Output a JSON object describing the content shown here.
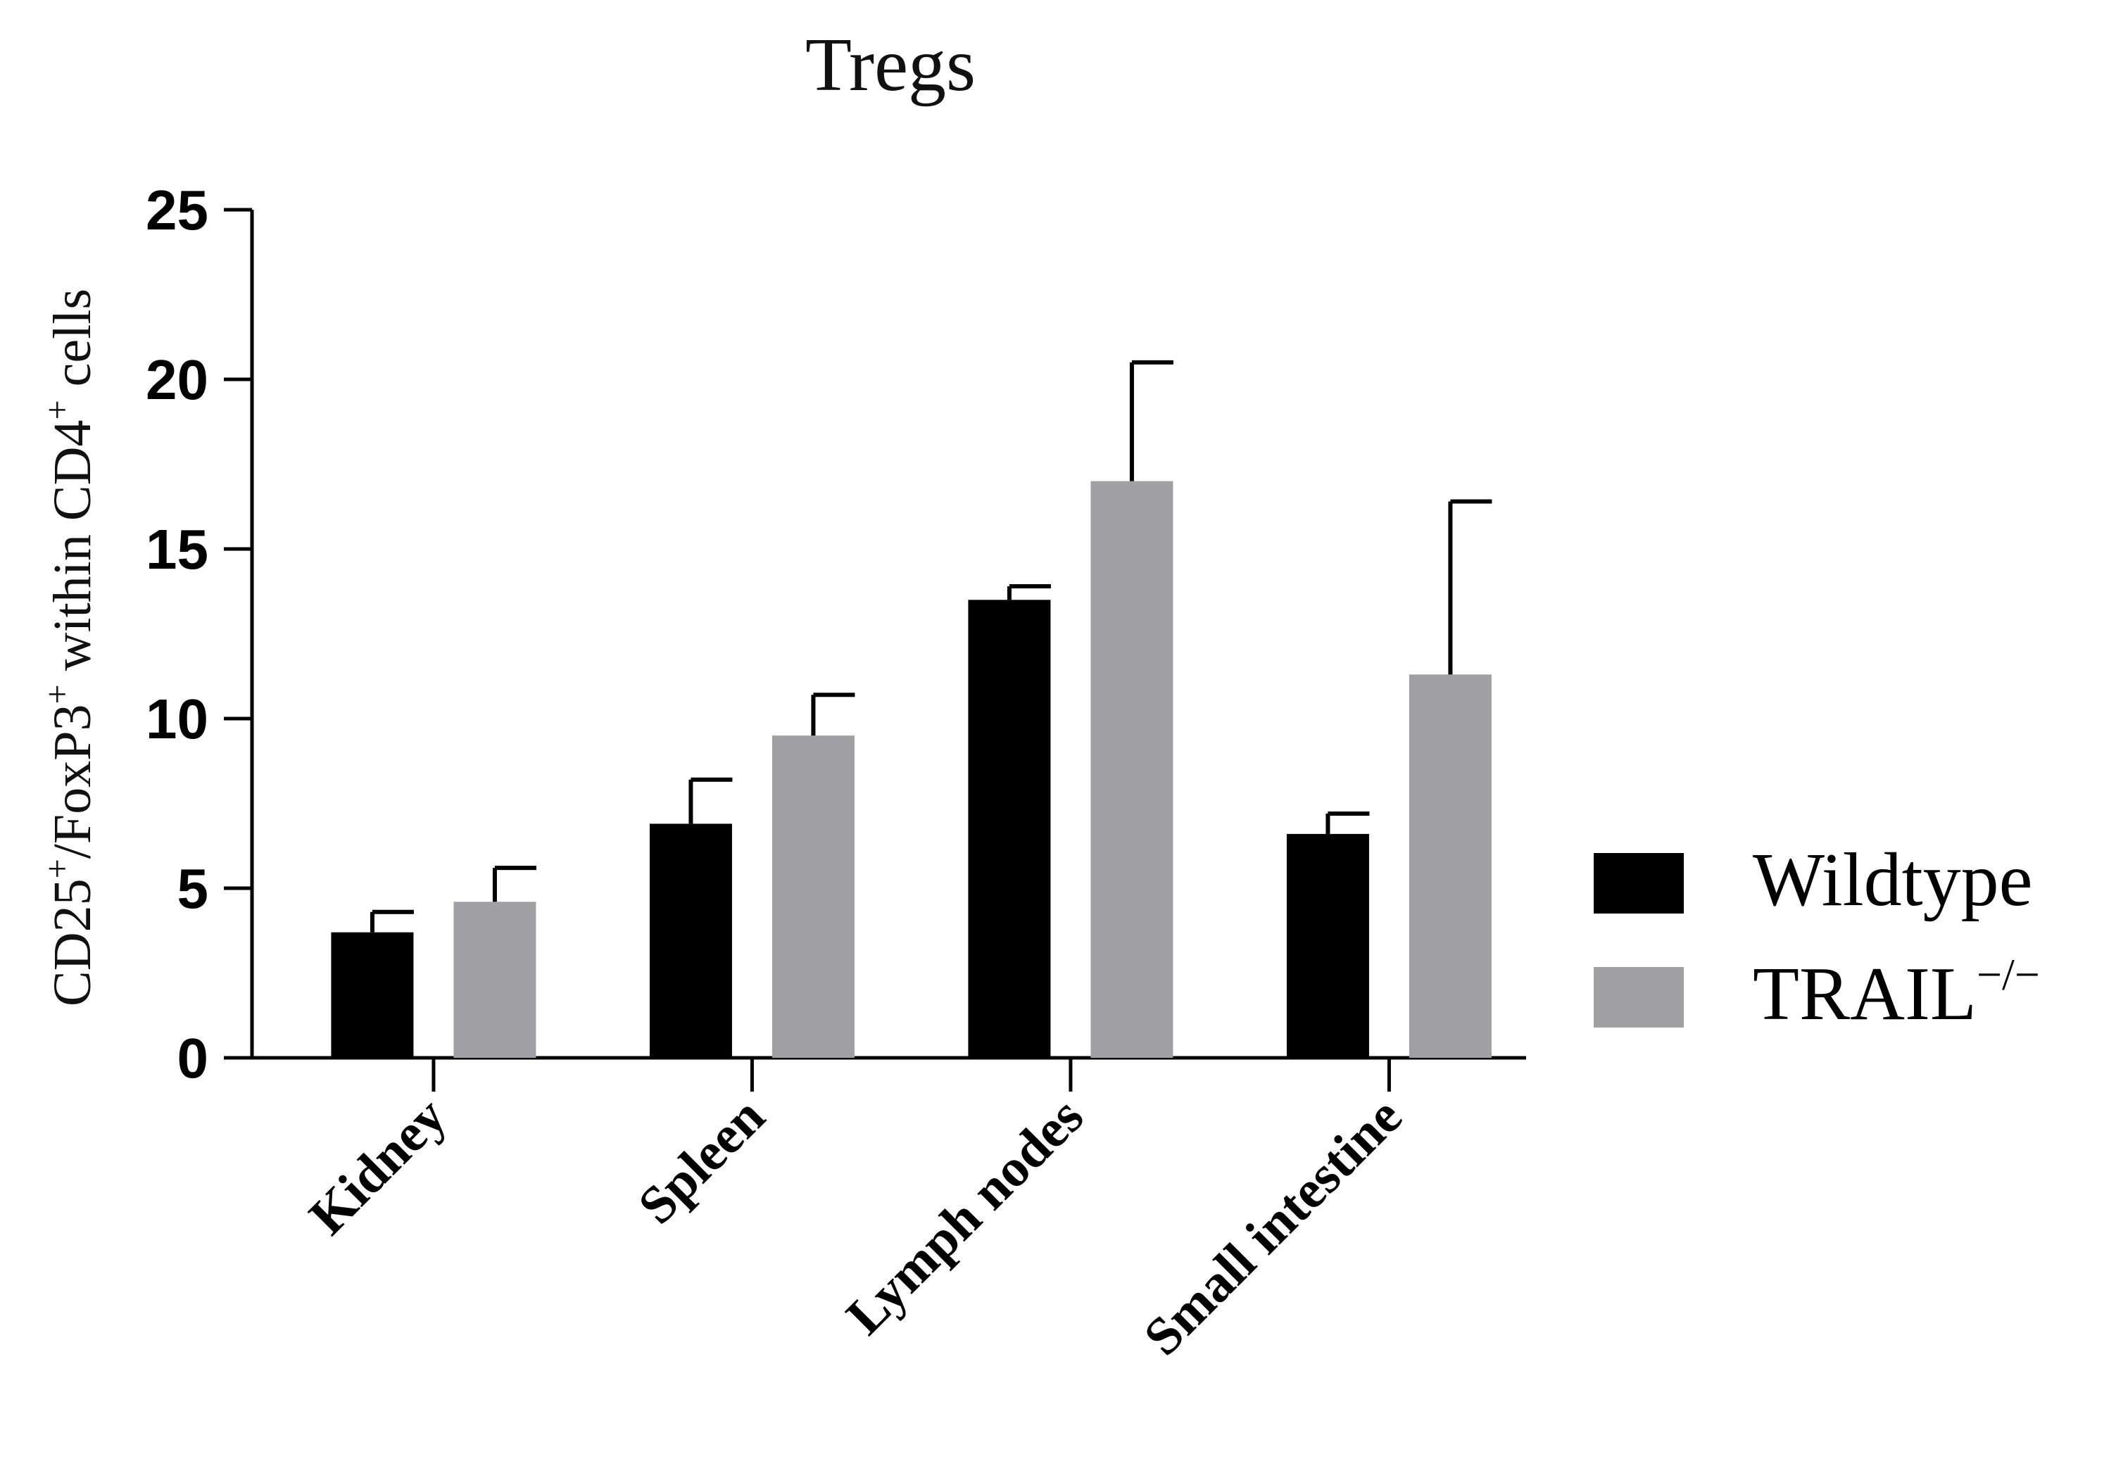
{
  "chart_data": {
    "type": "bar",
    "title": "Tregs",
    "ylabel": {
      "parts": [
        "CD25",
        "+",
        "/FoxP3",
        "+",
        " within CD4",
        "+",
        " cells"
      ]
    },
    "xlabel": "",
    "ylim": [
      0,
      25
    ],
    "yticks": [
      0,
      5,
      10,
      15,
      20,
      25
    ],
    "ytick_labels": [
      "0",
      "5",
      "10",
      "15",
      "20",
      "25"
    ],
    "categories": [
      "Kidney",
      "Spleen",
      "Lymph nodes",
      "Small intestine"
    ],
    "series": [
      {
        "name": "Wildtype",
        "legend_main": "Wildtype",
        "legend_sup": "",
        "color": "#000000",
        "values": [
          3.7,
          6.9,
          13.5,
          6.6
        ],
        "errors": [
          0.6,
          1.3,
          0.4,
          0.6
        ]
      },
      {
        "name": "TRAIL−/−",
        "legend_main": "TRAIL",
        "legend_sup": "−/−",
        "color": "#a0a0a4",
        "values": [
          4.6,
          9.5,
          17.0,
          11.3
        ],
        "errors": [
          1.0,
          1.2,
          3.5,
          5.1
        ]
      }
    ],
    "legend_position": "right",
    "grid": false
  }
}
